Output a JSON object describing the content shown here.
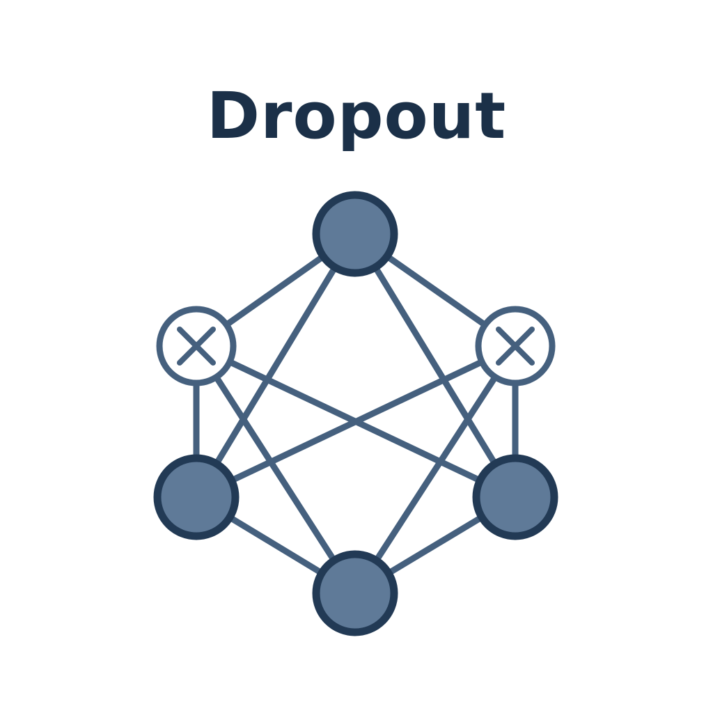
{
  "title": "Dropout",
  "colors": {
    "background": "#ffffff",
    "title": "#1b3048",
    "edge": "#45607e",
    "node_fill": "#5f7a98",
    "node_stroke": "#223a55",
    "dropped_fill": "#ffffff",
    "dropped_stroke": "#45607e"
  },
  "nodes": [
    {
      "id": "top",
      "state": "active"
    },
    {
      "id": "upper-left",
      "state": "dropped"
    },
    {
      "id": "upper-right",
      "state": "dropped"
    },
    {
      "id": "lower-left",
      "state": "active"
    },
    {
      "id": "lower-right",
      "state": "active"
    },
    {
      "id": "bottom",
      "state": "active"
    }
  ],
  "edges": [
    [
      "top",
      "upper-left"
    ],
    [
      "top",
      "upper-right"
    ],
    [
      "top",
      "lower-left"
    ],
    [
      "top",
      "lower-right"
    ],
    [
      "upper-left",
      "lower-left"
    ],
    [
      "upper-left",
      "lower-right"
    ],
    [
      "upper-left",
      "bottom"
    ],
    [
      "upper-right",
      "lower-left"
    ],
    [
      "upper-right",
      "lower-right"
    ],
    [
      "upper-right",
      "bottom"
    ],
    [
      "lower-left",
      "bottom"
    ],
    [
      "lower-right",
      "bottom"
    ]
  ]
}
